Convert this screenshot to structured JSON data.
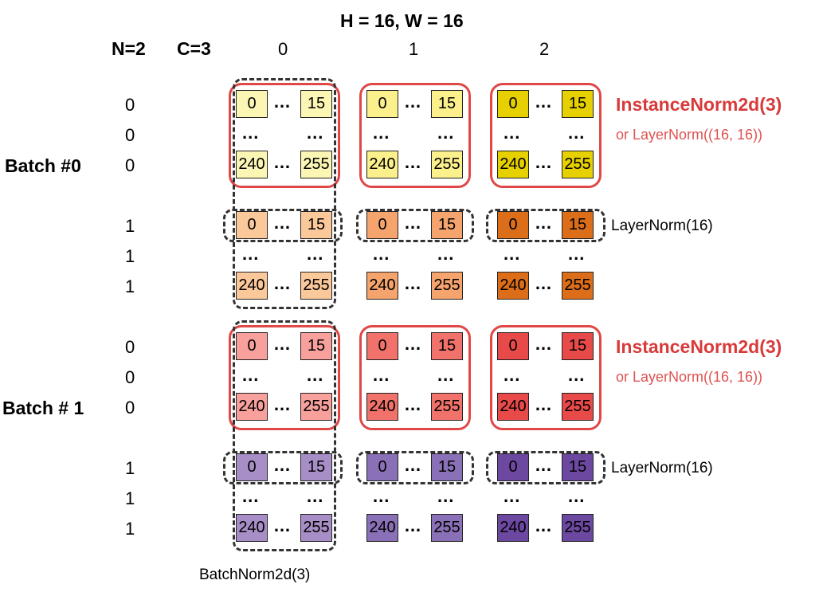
{
  "header": {
    "hw": "H = 16, W = 16",
    "n": "N=2",
    "c": "C=3",
    "channels": [
      "0",
      "1",
      "2"
    ]
  },
  "batches": [
    {
      "label": "Batch #0",
      "rows": [
        "0",
        "0",
        "0",
        "1",
        "1",
        "1"
      ]
    },
    {
      "label": "Batch # 1",
      "rows": [
        "0",
        "0",
        "0",
        "1",
        "1",
        "1"
      ]
    }
  ],
  "cells": {
    "tl": "0",
    "tr": "15",
    "bl": "240",
    "br": "255"
  },
  "ellipsis": "…",
  "vdots": "...",
  "labels": {
    "instance_norm": "InstanceNorm2d(3)",
    "instance_alt": "or LayerNorm((16, 16))",
    "layer_norm": "LayerNorm(16)",
    "batch_norm": "BatchNorm2d(3)"
  },
  "colors": {
    "b0_c0": "#fcf6b4",
    "b0_c1": "#fbf08c",
    "b0_c2": "#e6d000",
    "b0_n1_c0": "#fbc89a",
    "b0_n1_c1": "#f6a46e",
    "b0_n1_c2": "#dc6e1a",
    "b1_c0": "#f8a09c",
    "b1_c1": "#f0726a",
    "b1_c2": "#e84a4a",
    "b1_n1_c0": "#a88ec6",
    "b1_n1_c1": "#8a70b6",
    "b1_n1_c2": "#6c48a0",
    "instance_border": "#e04848",
    "dashed_border": "#333333"
  }
}
